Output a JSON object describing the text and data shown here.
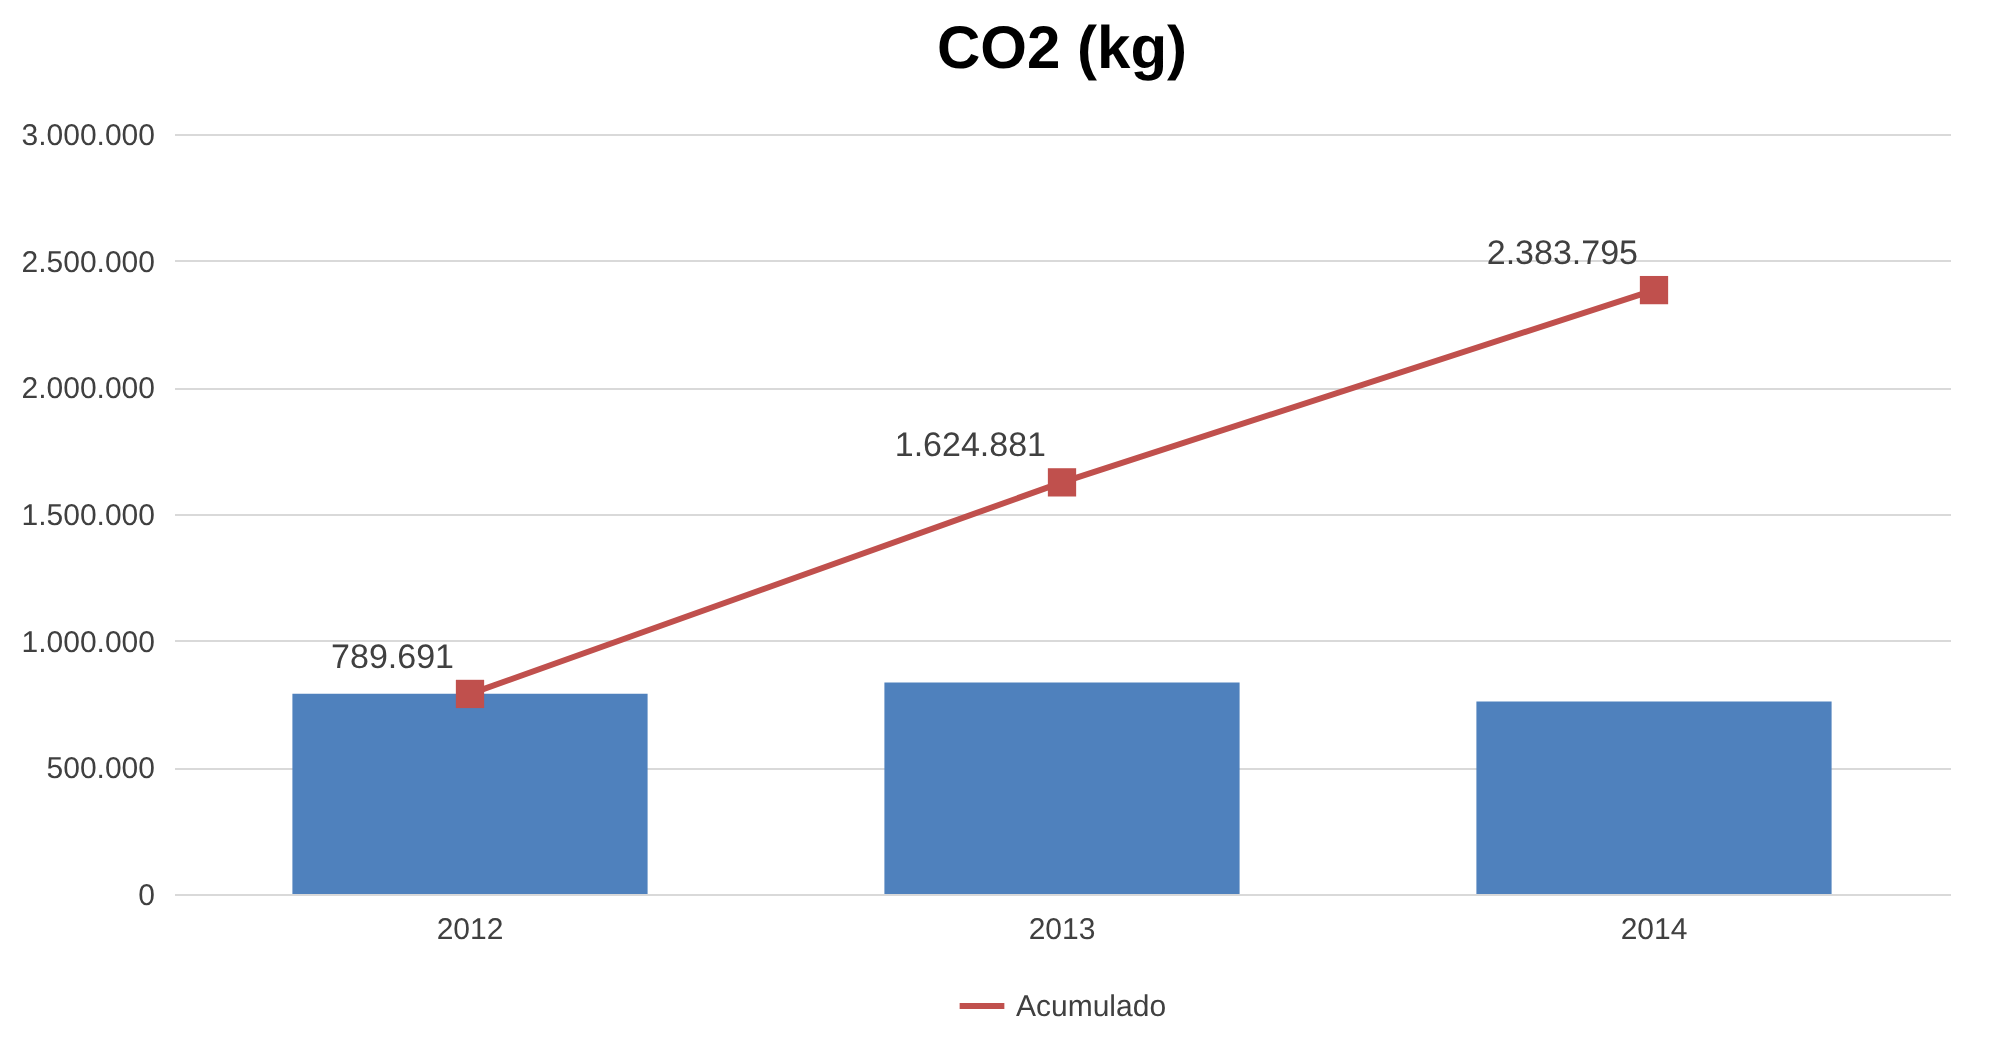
{
  "chart_data": {
    "type": "bar",
    "title": "CO2 (kg)",
    "categories": [
      "2012",
      "2013",
      "2014"
    ],
    "series": [
      {
        "color": "#4f81bd",
        "values": [
          790000,
          835000,
          760000
        ]
      },
      {
        "type": "line",
        "name": "Acumulado",
        "color": "#c0504d",
        "values": [
          789691,
          1624881,
          2383795
        ],
        "value_labels": [
          "789.691",
          "1.624.881",
          "2.383.795"
        ]
      }
    ],
    "ylim": [
      0,
      3000000
    ],
    "yticks": [
      0,
      {
        "value": 500000,
        "label": "500.000"
      },
      {
        "value": 1000000,
        "label": "1.000.000"
      },
      {
        "value": 1500000,
        "label": "1.500.000"
      },
      {
        "value": 2000000,
        "label": "2.000.000"
      },
      {
        "value": 2500000,
        "label": "2.500.000"
      },
      {
        "value": 3000000,
        "label": "3.000.000"
      }
    ],
    "grid": "y",
    "legend": "bottom",
    "marker": "square",
    "line_style": "solid"
  }
}
